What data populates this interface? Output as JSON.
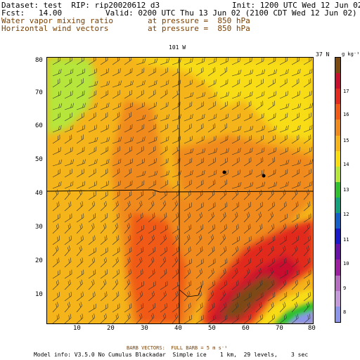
{
  "header": {
    "dataset": "Dataset: test  RIP: rip20020612 d3",
    "init": "Init: 1200 UTC Wed 12 Jun 02",
    "fcst": "Fcst:   14.00",
    "valid": "Valid: 0200 UTC Thu 13 Jun 02 (2100 CDT Wed 12 Jun 02)",
    "field1": "Water vapor mixing ratio",
    "field1_level": "at pressure =  850 hPa",
    "field2": "Horizontal wind vectors",
    "field2_level": "at pressure =  850 hPa"
  },
  "map": {
    "top_label": "101 W",
    "right_label": "37 N",
    "x_ticks": [
      "10",
      "20",
      "30",
      "40",
      "50",
      "60",
      "70",
      "80"
    ],
    "y_ticks": [
      "80",
      "70",
      "60",
      "50",
      "40",
      "30",
      "20",
      "10"
    ]
  },
  "colorbar": {
    "units": "g kg⁻¹",
    "labels": [
      "17",
      "16",
      "15",
      "14",
      "13",
      "12",
      "11",
      "10",
      "9",
      "8"
    ],
    "colors": [
      "#7b4a12",
      "#c8102e",
      "#e22a1f",
      "#f05a16",
      "#f08a1c",
      "#f5b41a",
      "#f7dc12",
      "#b6e63a",
      "#2fbf2f",
      "#14a07a",
      "#1460c8",
      "#1a1acb",
      "#6a12a8",
      "#9c1fa0",
      "#b56ec0",
      "#c49bd8",
      "#8c95e8"
    ]
  },
  "footer": {
    "barb": "BARB VECTORS:  FULL BARB = 5 m s⁻¹",
    "model_info": "Model info: V3.5.0 No Cumulus Blackadar  Simple ice    1 km,  29 levels,    3 sec"
  }
}
